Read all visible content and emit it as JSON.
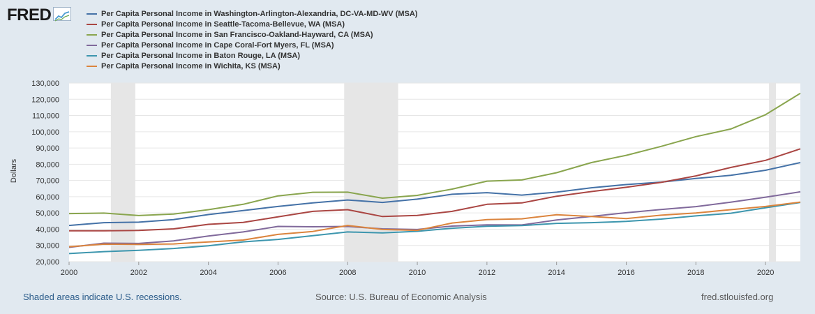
{
  "brand": {
    "name": "FRED"
  },
  "colors": {
    "background": "#e1e9f0",
    "plot_background": "#ffffff",
    "recession": "#e6e6e6",
    "grid": "#e6e6e6",
    "link": "#2b5c8a"
  },
  "footer": {
    "recession_note": "Shaded areas indicate U.S. recessions.",
    "source": "Source: U.S. Bureau of Economic Analysis",
    "site": "fred.stlouisfed.org"
  },
  "chart_data": {
    "type": "line",
    "title": "",
    "xlabel": "",
    "ylabel": "Dollars",
    "xlim": [
      2000,
      2021
    ],
    "ylim": [
      20000,
      130000
    ],
    "y_ticks": [
      20000,
      30000,
      40000,
      50000,
      60000,
      70000,
      80000,
      90000,
      100000,
      110000,
      120000,
      130000
    ],
    "y_tick_labels": [
      "20,000",
      "30,000",
      "40,000",
      "50,000",
      "60,000",
      "70,000",
      "80,000",
      "90,000",
      "100,000",
      "110,000",
      "120,000",
      "130,000"
    ],
    "x_ticks": [
      2000,
      2002,
      2004,
      2006,
      2008,
      2010,
      2012,
      2014,
      2016,
      2018,
      2020
    ],
    "x_tick_labels": [
      "2000",
      "2002",
      "2004",
      "2006",
      "2008",
      "2010",
      "2012",
      "2014",
      "2016",
      "2018",
      "2020"
    ],
    "grid": true,
    "legend_position": "top",
    "recessions": [
      [
        2001.2,
        2001.9
      ],
      [
        2007.9,
        2009.45
      ],
      [
        2020.1,
        2020.3
      ]
    ],
    "x": [
      2000,
      2001,
      2002,
      2003,
      2004,
      2005,
      2006,
      2007,
      2008,
      2009,
      2010,
      2011,
      2012,
      2013,
      2014,
      2015,
      2016,
      2017,
      2018,
      2019,
      2020,
      2021
    ],
    "series": [
      {
        "name": "Per Capita Personal Income in Washington-Arlington-Alexandria, DC-VA-MD-WV (MSA)",
        "color": "#4572a7",
        "values": [
          42300,
          44000,
          44300,
          45900,
          49000,
          51500,
          54000,
          56200,
          58000,
          56500,
          58500,
          61500,
          62500,
          61000,
          62800,
          65500,
          67500,
          69000,
          71200,
          73200,
          76300,
          81000
        ]
      },
      {
        "name": "Per Capita Personal Income in Seattle-Tacoma-Bellevue, WA (MSA)",
        "color": "#aa4643",
        "values": [
          39000,
          39000,
          39200,
          40200,
          43000,
          44200,
          47600,
          51000,
          52000,
          47800,
          48500,
          51000,
          55300,
          56200,
          60300,
          63200,
          65800,
          68800,
          72800,
          78000,
          82400,
          89500
        ]
      },
      {
        "name": "Per Capita Personal Income in San Francisco-Oakland-Hayward, CA (MSA)",
        "color": "#89a54e",
        "values": [
          49600,
          49900,
          48400,
          49300,
          52000,
          55300,
          60500,
          62700,
          62800,
          59100,
          60800,
          64700,
          69600,
          70300,
          74800,
          81000,
          85500,
          91000,
          97000,
          101700,
          110500,
          123700
        ]
      },
      {
        "name": "Per Capita Personal Income in Cape Coral-Fort Myers, FL (MSA)",
        "color": "#80699b",
        "values": [
          28800,
          31400,
          31200,
          32800,
          35800,
          38300,
          41700,
          41500,
          41700,
          40200,
          39800,
          41900,
          42700,
          42600,
          45700,
          47900,
          50100,
          52100,
          53900,
          56600,
          59700,
          63000
        ]
      },
      {
        "name": "Per Capita Personal Income in Baton Rouge, LA (MSA)",
        "color": "#3d96ae",
        "values": [
          25000,
          26200,
          27000,
          28100,
          29800,
          32200,
          33700,
          36000,
          38300,
          37700,
          38700,
          40600,
          41800,
          42200,
          43600,
          44000,
          44800,
          46200,
          48200,
          49800,
          53200,
          56500
        ]
      },
      {
        "name": "Per Capita Personal Income in Wichita, KS (MSA)",
        "color": "#db843d",
        "values": [
          29200,
          30800,
          30600,
          30900,
          32100,
          33300,
          36800,
          38600,
          42300,
          39800,
          39300,
          43800,
          45900,
          46400,
          48900,
          47800,
          46500,
          48600,
          50000,
          52000,
          54000,
          56700
        ]
      }
    ]
  }
}
